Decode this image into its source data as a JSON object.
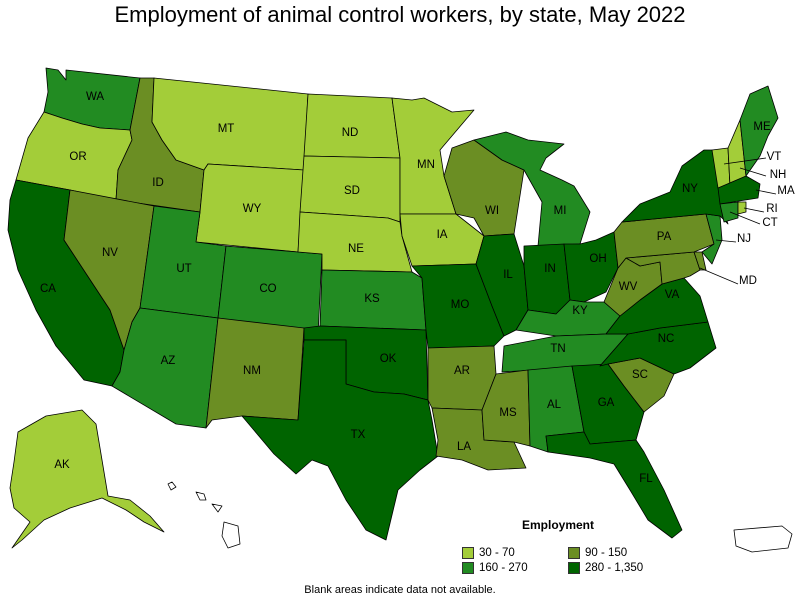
{
  "title": "Employment of animal control workers, by state, May 2022",
  "footnote": "Blank areas indicate data not available.",
  "colors": {
    "bin_30_70": "#a3cd39",
    "bin_90_150": "#6b8e23",
    "bin_160_270": "#228b22",
    "bin_280_1350": "#006400",
    "border": "#000000",
    "background": "#ffffff"
  },
  "legend": {
    "title": "Employment",
    "items": [
      {
        "label": "30 - 70",
        "color": "#a3cd39"
      },
      {
        "label": "90 - 150",
        "color": "#6b8e23"
      },
      {
        "label": "160 - 270",
        "color": "#228b22"
      },
      {
        "label": "280 - 1,350",
        "color": "#006400"
      }
    ]
  },
  "states": [
    {
      "abbr": "WA",
      "bin": "160 - 270"
    },
    {
      "abbr": "OR",
      "bin": "30 - 70"
    },
    {
      "abbr": "CA",
      "bin": "280 - 1,350"
    },
    {
      "abbr": "ID",
      "bin": "90 - 150"
    },
    {
      "abbr": "NV",
      "bin": "90 - 150"
    },
    {
      "abbr": "MT",
      "bin": "30 - 70"
    },
    {
      "abbr": "WY",
      "bin": "30 - 70"
    },
    {
      "abbr": "UT",
      "bin": "160 - 270"
    },
    {
      "abbr": "AZ",
      "bin": "160 - 270"
    },
    {
      "abbr": "CO",
      "bin": "160 - 270"
    },
    {
      "abbr": "NM",
      "bin": "90 - 150"
    },
    {
      "abbr": "ND",
      "bin": "30 - 70"
    },
    {
      "abbr": "SD",
      "bin": "30 - 70"
    },
    {
      "abbr": "NE",
      "bin": "30 - 70"
    },
    {
      "abbr": "KS",
      "bin": "160 - 270"
    },
    {
      "abbr": "OK",
      "bin": "280 - 1,350"
    },
    {
      "abbr": "TX",
      "bin": "280 - 1,350"
    },
    {
      "abbr": "MN",
      "bin": "30 - 70"
    },
    {
      "abbr": "IA",
      "bin": "30 - 70"
    },
    {
      "abbr": "MO",
      "bin": "280 - 1,350"
    },
    {
      "abbr": "AR",
      "bin": "90 - 150"
    },
    {
      "abbr": "LA",
      "bin": "90 - 150"
    },
    {
      "abbr": "WI",
      "bin": "90 - 150"
    },
    {
      "abbr": "IL",
      "bin": "280 - 1,350"
    },
    {
      "abbr": "MI",
      "bin": "160 - 270"
    },
    {
      "abbr": "IN",
      "bin": "280 - 1,350"
    },
    {
      "abbr": "OH",
      "bin": "280 - 1,350"
    },
    {
      "abbr": "KY",
      "bin": "160 - 270"
    },
    {
      "abbr": "TN",
      "bin": "160 - 270"
    },
    {
      "abbr": "MS",
      "bin": "90 - 150"
    },
    {
      "abbr": "AL",
      "bin": "160 - 270"
    },
    {
      "abbr": "GA",
      "bin": "280 - 1,350"
    },
    {
      "abbr": "FL",
      "bin": "280 - 1,350"
    },
    {
      "abbr": "SC",
      "bin": "90 - 150"
    },
    {
      "abbr": "NC",
      "bin": "280 - 1,350"
    },
    {
      "abbr": "VA",
      "bin": "280 - 1,350"
    },
    {
      "abbr": "WV",
      "bin": "90 - 150"
    },
    {
      "abbr": "PA",
      "bin": "90 - 150"
    },
    {
      "abbr": "NY",
      "bin": "280 - 1,350"
    },
    {
      "abbr": "ME",
      "bin": "160 - 270"
    },
    {
      "abbr": "VT",
      "bin": "30 - 70"
    },
    {
      "abbr": "NH",
      "bin": "30 - 70"
    },
    {
      "abbr": "MA",
      "bin": "280 - 1,350"
    },
    {
      "abbr": "CT",
      "bin": "160 - 270"
    },
    {
      "abbr": "RI",
      "bin": "30 - 70"
    },
    {
      "abbr": "NJ",
      "bin": "160 - 270"
    },
    {
      "abbr": "MD",
      "bin": "90 - 150"
    },
    {
      "abbr": "DE",
      "bin": "90 - 150"
    },
    {
      "abbr": "AK",
      "bin": "30 - 70"
    },
    {
      "abbr": "HI",
      "bin": ""
    },
    {
      "abbr": "PR",
      "bin": ""
    }
  ]
}
